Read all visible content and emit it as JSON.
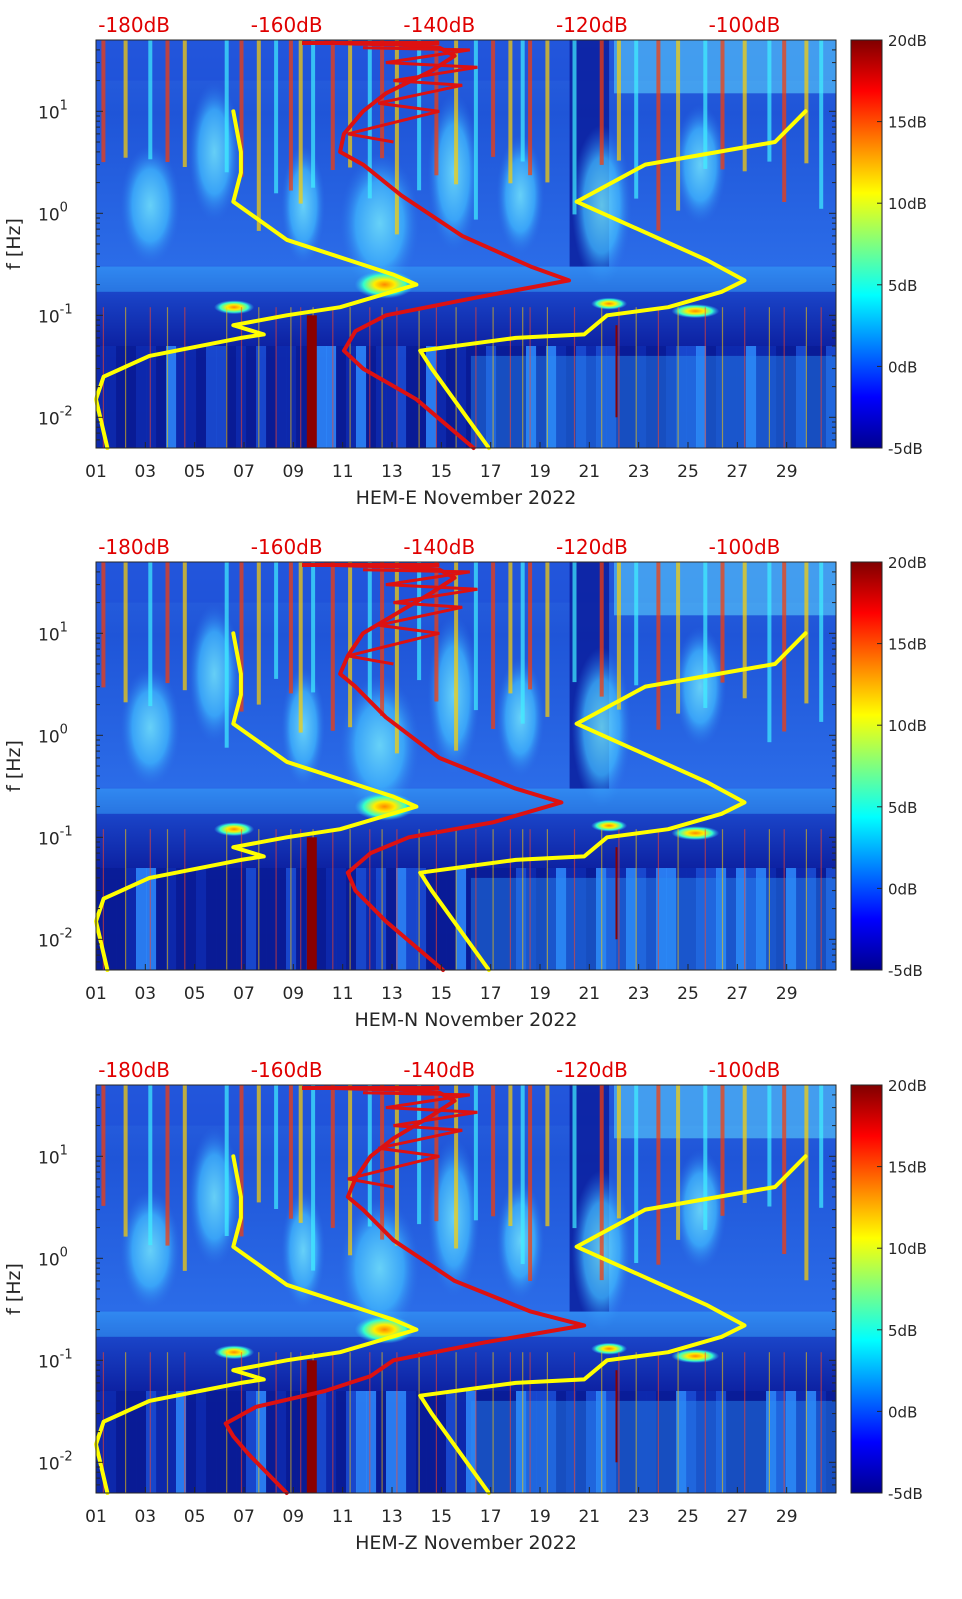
{
  "chart_data": [
    {
      "type": "heatmap",
      "title": "",
      "xlabel": "HEM-E November 2022",
      "ylabel": "f [Hz]",
      "x_tick_labels": [
        "01",
        "03",
        "05",
        "07",
        "09",
        "11",
        "13",
        "15",
        "17",
        "19",
        "21",
        "23",
        "25",
        "27",
        "29"
      ],
      "x_range_days": [
        1,
        31
      ],
      "y_scale": "log",
      "ylim_hz": [
        0.005,
        50
      ],
      "y_tick_labels": [
        {
          "exp": "-2",
          "value": 0.01
        },
        {
          "exp": "-1",
          "value": 0.1
        },
        {
          "exp": "0",
          "value": 1
        },
        {
          "exp": "1",
          "value": 10
        }
      ],
      "top_axis_labels": [
        "-180dB",
        "-160dB",
        "-140dB",
        "-120dB",
        "-100dB"
      ],
      "top_axis_range_db": [
        -185,
        -88
      ],
      "colorbar_labels": [
        "20dB",
        "15dB",
        "10dB",
        "5dB",
        "0dB",
        "-5dB"
      ],
      "colorbar_range_db": [
        -5,
        20
      ],
      "colormap": "jet",
      "overlay_series": [
        {
          "name": "yellow-noise-curve-low",
          "color": "#ffff00",
          "points": [
            [
              -183.5,
              0.005
            ],
            [
              -185,
              0.015
            ],
            [
              -184,
              0.025
            ],
            [
              -178,
              0.04
            ],
            [
              -166,
              0.06
            ],
            [
              -163,
              0.065
            ],
            [
              -167,
              0.08
            ],
            [
              -160,
              0.1
            ],
            [
              -153,
              0.12
            ],
            [
              -143,
              0.2
            ],
            [
              -146,
              0.25
            ],
            [
              -160,
              0.55
            ],
            [
              -167,
              1.3
            ],
            [
              -166,
              2.5
            ],
            [
              -166,
              4
            ],
            [
              -167,
              10
            ]
          ]
        },
        {
          "name": "red-noise-curve",
          "color": "#dd1111",
          "points": [
            [
              -135.5,
              0.005
            ],
            [
              -143,
              0.015
            ],
            [
              -150,
              0.03
            ],
            [
              -152.5,
              0.045
            ],
            [
              -151,
              0.07
            ],
            [
              -147,
              0.1
            ],
            [
              -135,
              0.15
            ],
            [
              -123,
              0.22
            ],
            [
              -128,
              0.3
            ],
            [
              -137,
              0.6
            ],
            [
              -145,
              1.5
            ],
            [
              -150,
              3
            ],
            [
              -153,
              4
            ],
            [
              -152.5,
              6
            ],
            [
              -150,
              10
            ],
            [
              -147,
              15
            ],
            [
              -141,
              25
            ],
            [
              -138,
              35
            ],
            [
              -140,
              42
            ],
            [
              -145,
              45
            ],
            [
              -155,
              47
            ]
          ]
        },
        {
          "name": "yellow-noise-curve-high",
          "color": "#ffff00",
          "points": [
            [
              -133.5,
              0.005
            ],
            [
              -141,
              0.03
            ],
            [
              -142.5,
              0.045
            ],
            [
              -130,
              0.06
            ],
            [
              -121,
              0.065
            ],
            [
              -118,
              0.1
            ],
            [
              -110,
              0.12
            ],
            [
              -103,
              0.17
            ],
            [
              -100,
              0.22
            ],
            [
              -105,
              0.35
            ],
            [
              -122,
              1.3
            ],
            [
              -113,
              3
            ],
            [
              -96,
              5
            ],
            [
              -92,
              10
            ]
          ]
        }
      ]
    },
    {
      "type": "heatmap",
      "title": "",
      "xlabel": "HEM-N November 2022",
      "ylabel": "f [Hz]",
      "x_tick_labels": [
        "01",
        "03",
        "05",
        "07",
        "09",
        "11",
        "13",
        "15",
        "17",
        "19",
        "21",
        "23",
        "25",
        "27",
        "29"
      ],
      "x_range_days": [
        1,
        31
      ],
      "y_scale": "log",
      "ylim_hz": [
        0.005,
        50
      ],
      "y_tick_labels": [
        {
          "exp": "-2",
          "value": 0.01
        },
        {
          "exp": "-1",
          "value": 0.1
        },
        {
          "exp": "0",
          "value": 1
        },
        {
          "exp": "1",
          "value": 10
        }
      ],
      "top_axis_labels": [
        "-180dB",
        "-160dB",
        "-140dB",
        "-120dB",
        "-100dB"
      ],
      "top_axis_range_db": [
        -185,
        -88
      ],
      "colorbar_labels": [
        "20dB",
        "15dB",
        "10dB",
        "5dB",
        "0dB",
        "-5dB"
      ],
      "colorbar_range_db": [
        -5,
        20
      ],
      "colormap": "jet",
      "overlay_series": [
        {
          "name": "yellow-noise-curve-low",
          "color": "#ffff00",
          "points": [
            [
              -183.5,
              0.005
            ],
            [
              -185,
              0.015
            ],
            [
              -184,
              0.025
            ],
            [
              -178,
              0.04
            ],
            [
              -166,
              0.06
            ],
            [
              -163,
              0.065
            ],
            [
              -167,
              0.08
            ],
            [
              -160,
              0.1
            ],
            [
              -153,
              0.12
            ],
            [
              -143,
              0.2
            ],
            [
              -146,
              0.25
            ],
            [
              -160,
              0.55
            ],
            [
              -167,
              1.3
            ],
            [
              -166,
              2.5
            ],
            [
              -166,
              4
            ],
            [
              -167,
              10
            ]
          ]
        },
        {
          "name": "red-noise-curve",
          "color": "#dd1111",
          "points": [
            [
              -139.5,
              0.005
            ],
            [
              -147,
              0.015
            ],
            [
              -151,
              0.03
            ],
            [
              -152,
              0.045
            ],
            [
              -149,
              0.07
            ],
            [
              -144,
              0.1
            ],
            [
              -133,
              0.14
            ],
            [
              -124,
              0.22
            ],
            [
              -130,
              0.3
            ],
            [
              -140,
              0.6
            ],
            [
              -147,
              1.5
            ],
            [
              -151,
              3
            ],
            [
              -153,
              4
            ],
            [
              -152,
              6
            ],
            [
              -150,
              10
            ],
            [
              -146,
              15
            ],
            [
              -141,
              25
            ],
            [
              -138,
              35
            ],
            [
              -140,
              42
            ],
            [
              -145,
              45
            ],
            [
              -155,
              47
            ]
          ]
        },
        {
          "name": "yellow-noise-curve-high",
          "color": "#ffff00",
          "points": [
            [
              -133.5,
              0.005
            ],
            [
              -141,
              0.03
            ],
            [
              -142.5,
              0.045
            ],
            [
              -130,
              0.06
            ],
            [
              -121,
              0.065
            ],
            [
              -118,
              0.1
            ],
            [
              -110,
              0.12
            ],
            [
              -103,
              0.17
            ],
            [
              -100,
              0.22
            ],
            [
              -105,
              0.35
            ],
            [
              -122,
              1.3
            ],
            [
              -113,
              3
            ],
            [
              -96,
              5
            ],
            [
              -92,
              10
            ]
          ]
        }
      ]
    },
    {
      "type": "heatmap",
      "title": "",
      "xlabel": "HEM-Z November 2022",
      "ylabel": "f [Hz]",
      "x_tick_labels": [
        "01",
        "03",
        "05",
        "07",
        "09",
        "11",
        "13",
        "15",
        "17",
        "19",
        "21",
        "23",
        "25",
        "27",
        "29"
      ],
      "x_range_days": [
        1,
        31
      ],
      "y_scale": "log",
      "ylim_hz": [
        0.005,
        50
      ],
      "y_tick_labels": [
        {
          "exp": "-2",
          "value": 0.01
        },
        {
          "exp": "-1",
          "value": 0.1
        },
        {
          "exp": "0",
          "value": 1
        },
        {
          "exp": "1",
          "value": 10
        }
      ],
      "top_axis_labels": [
        "-180dB",
        "-160dB",
        "-140dB",
        "-120dB",
        "-100dB"
      ],
      "top_axis_range_db": [
        -185,
        -88
      ],
      "colorbar_labels": [
        "20dB",
        "15dB",
        "10dB",
        "5dB",
        "0dB",
        "-5dB"
      ],
      "colorbar_range_db": [
        -5,
        20
      ],
      "colormap": "jet",
      "overlay_series": [
        {
          "name": "yellow-noise-curve-low",
          "color": "#ffff00",
          "points": [
            [
              -183.5,
              0.005
            ],
            [
              -185,
              0.015
            ],
            [
              -184,
              0.025
            ],
            [
              -178,
              0.04
            ],
            [
              -166,
              0.06
            ],
            [
              -163,
              0.065
            ],
            [
              -167,
              0.08
            ],
            [
              -160,
              0.1
            ],
            [
              -153,
              0.12
            ],
            [
              -143,
              0.2
            ],
            [
              -146,
              0.25
            ],
            [
              -160,
              0.55
            ],
            [
              -167,
              1.3
            ],
            [
              -166,
              2.5
            ],
            [
              -166,
              4
            ],
            [
              -167,
              10
            ]
          ]
        },
        {
          "name": "red-noise-curve",
          "color": "#dd1111",
          "points": [
            [
              -160,
              0.005
            ],
            [
              -165,
              0.012
            ],
            [
              -167,
              0.018
            ],
            [
              -168,
              0.024
            ],
            [
              -164,
              0.035
            ],
            [
              -155,
              0.05
            ],
            [
              -149,
              0.07
            ],
            [
              -146,
              0.1
            ],
            [
              -134,
              0.15
            ],
            [
              -121,
              0.22
            ],
            [
              -128,
              0.3
            ],
            [
              -138,
              0.6
            ],
            [
              -146,
              1.5
            ],
            [
              -150,
              3
            ],
            [
              -152,
              4
            ],
            [
              -151,
              6
            ],
            [
              -149,
              10
            ],
            [
              -146,
              15
            ],
            [
              -141,
              25
            ],
            [
              -138,
              35
            ],
            [
              -140,
              42
            ],
            [
              -145,
              45
            ],
            [
              -155,
              47
            ]
          ]
        },
        {
          "name": "yellow-noise-curve-high",
          "color": "#ffff00",
          "points": [
            [
              -133.5,
              0.005
            ],
            [
              -141,
              0.03
            ],
            [
              -142.5,
              0.045
            ],
            [
              -130,
              0.06
            ],
            [
              -121,
              0.065
            ],
            [
              -118,
              0.1
            ],
            [
              -110,
              0.12
            ],
            [
              -103,
              0.17
            ],
            [
              -100,
              0.22
            ],
            [
              -105,
              0.35
            ],
            [
              -122,
              1.3
            ],
            [
              -113,
              3
            ],
            [
              -96,
              5
            ],
            [
              -92,
              10
            ]
          ]
        }
      ]
    }
  ]
}
